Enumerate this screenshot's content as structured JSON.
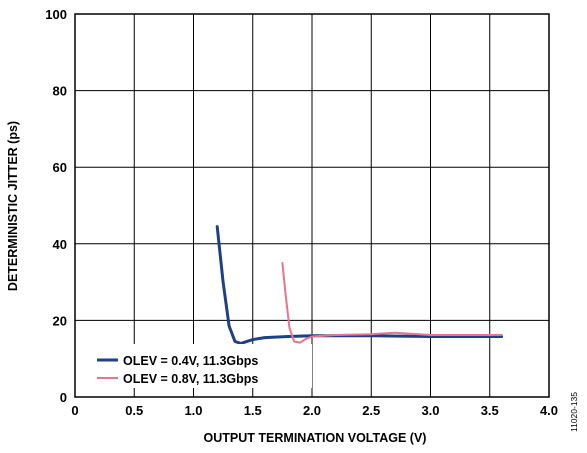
{
  "chart_data": {
    "type": "line",
    "xlabel": "OUTPUT TERMINATION VOLTAGE (V)",
    "ylabel": "DETERMINISTIC JITTER (ps)",
    "xlim": [
      0,
      4.0
    ],
    "ylim": [
      0,
      100
    ],
    "x_ticks": [
      "0",
      "0.5",
      "1.0",
      "1.5",
      "2.0",
      "2.5",
      "3.0",
      "3.5",
      "4.0"
    ],
    "y_ticks": [
      "0",
      "20",
      "40",
      "60",
      "80",
      "100"
    ],
    "grid": true,
    "legend_position": "bottom-left",
    "series": [
      {
        "name": "OLEV = 0.4V, 11.3Gbps",
        "color": "#1f3f86",
        "points": [
          [
            1.2,
            44.5
          ],
          [
            1.25,
            30
          ],
          [
            1.3,
            18.5
          ],
          [
            1.35,
            14.5
          ],
          [
            1.4,
            14
          ],
          [
            1.5,
            15
          ],
          [
            1.6,
            15.5
          ],
          [
            1.8,
            15.8
          ],
          [
            2.0,
            16
          ],
          [
            2.5,
            16
          ],
          [
            3.0,
            15.8
          ],
          [
            3.6,
            15.8
          ]
        ]
      },
      {
        "name": "OLEV = 0.8V, 11.3Gbps",
        "color": "#e8758d",
        "points": [
          [
            1.75,
            35
          ],
          [
            1.78,
            26
          ],
          [
            1.81,
            18
          ],
          [
            1.85,
            14.5
          ],
          [
            1.9,
            14.2
          ],
          [
            1.95,
            15.2
          ],
          [
            2.0,
            15.8
          ],
          [
            2.2,
            16.2
          ],
          [
            2.5,
            16.4
          ],
          [
            2.7,
            16.8
          ],
          [
            3.0,
            16.2
          ],
          [
            3.6,
            16.2
          ]
        ]
      }
    ],
    "figure_id": "11020-135"
  }
}
